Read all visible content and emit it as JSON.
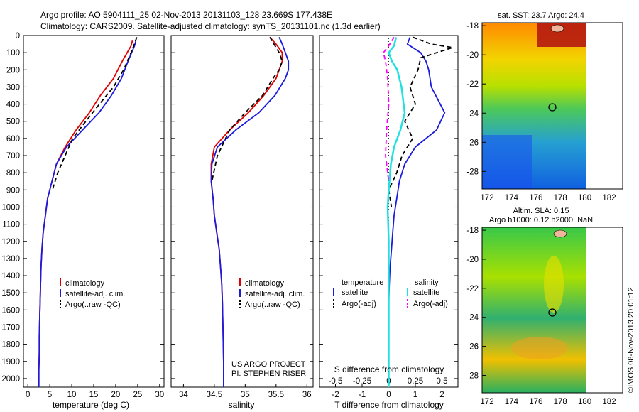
{
  "header": {
    "line1": "Argo profile: AO 5904111_25 02-Nov-2013 20131103_128 23.669S 177.438E",
    "line2": "Climatology: CARS2009. Satellite-adjusted climatology: synTS_20131101.nc (1.3d earlier)"
  },
  "colors": {
    "climatology": "#e00000",
    "satellite": "#1a1ae0",
    "argo": "#000000",
    "sal_satellite": "#20e0e0",
    "sal_argo": "#ff00ff"
  },
  "depth_axis": {
    "min": 0,
    "max": 2050,
    "ticks": [
      "0",
      "100",
      "200",
      "300",
      "400",
      "500",
      "600",
      "700",
      "800",
      "900",
      "1000",
      "1100",
      "1200",
      "1300",
      "1400",
      "1500",
      "1600",
      "1700",
      "1800",
      "1900",
      "2000"
    ]
  },
  "temperature_panel": {
    "xlabel": "temperature (deg C)",
    "xticks": [
      "0",
      "5",
      "10",
      "15",
      "20",
      "25",
      "30"
    ],
    "legend": [
      "climatology",
      "satellite-adj. clim.",
      "Argo(..raw -QC)"
    ]
  },
  "salinity_panel": {
    "xlabel": "salinity",
    "xticks": [
      "34",
      "34.5",
      "35",
      "35.5",
      "36"
    ],
    "legend": [
      "climatology",
      "satellite-adj. clim.",
      "Argo(..raw -QC)"
    ],
    "credit1": "US ARGO PROJECT",
    "credit2": "PI: STEPHEN RISER"
  },
  "diff_panel": {
    "top_ticks": [
      "-0.5",
      "-0.25",
      "0",
      "0.25",
      "0.5"
    ],
    "bottom_ticks": [
      "-2",
      "-1",
      "0",
      "1",
      "2"
    ],
    "top_label": "S difference from climatology",
    "bottom_label": "T difference from climatology",
    "legend_temp_title": "temperature",
    "legend_sal_title": "salinity",
    "legend_temp": [
      "satellite",
      "Argo(-adj)"
    ],
    "legend_sal": [
      "satellite",
      "Argo(-adj)"
    ]
  },
  "map_sst": {
    "title": "sat. SST: 23.7 Argo: 24.4",
    "yticks": [
      "-18",
      "-20",
      "-22",
      "-24",
      "-26",
      "-28"
    ],
    "xticks": [
      "172",
      "174",
      "176",
      "178",
      "180",
      "182"
    ]
  },
  "map_sla": {
    "title1": "Altim. SLA: 0.15",
    "title2": "Argo h1000: 0.12 h2000: NaN",
    "yticks": [
      "-18",
      "-20",
      "-22",
      "-24",
      "-26",
      "-28"
    ],
    "xticks": [
      "172",
      "174",
      "176",
      "178",
      "180",
      "182"
    ]
  },
  "footer": {
    "stamp": "©IMOS 08-Nov-2013 20:01:12"
  },
  "chart_data": [
    {
      "type": "line",
      "title": "",
      "xlabel": "temperature (deg C)",
      "ylabel": "",
      "xlim": [
        -1,
        31
      ],
      "ylim": [
        2050,
        0
      ],
      "series": [
        {
          "name": "climatology",
          "x": [
            23.8,
            23.5,
            21.5,
            19.5,
            16.5,
            14.0,
            11.0,
            8.5,
            6.5,
            5.5,
            4.5,
            4.0,
            3.5,
            3.2,
            3.0,
            2.9,
            2.8,
            2.7,
            2.6,
            2.6,
            2.5,
            2.5
          ],
          "y": [
            30,
            60,
            150,
            250,
            350,
            450,
            550,
            650,
            750,
            850,
            950,
            1050,
            1150,
            1250,
            1350,
            1450,
            1550,
            1650,
            1750,
            1850,
            1950,
            2050
          ]
        },
        {
          "name": "satellite-adj. clim.",
          "x": [
            24.6,
            24.3,
            22.8,
            21.3,
            19.0,
            16.2,
            12.5,
            8.8,
            6.5,
            5.5,
            4.5,
            4.0,
            3.5,
            3.2,
            3.0,
            2.9,
            2.8,
            2.7,
            2.6,
            2.6,
            2.5,
            2.5
          ],
          "y": [
            30,
            60,
            150,
            250,
            350,
            450,
            550,
            650,
            750,
            850,
            950,
            1050,
            1150,
            1250,
            1350,
            1450,
            1550,
            1650,
            1750,
            1850,
            1950,
            2050
          ]
        },
        {
          "name": "Argo(..raw -QC)",
          "x": [
            24.8,
            24.4,
            23.5,
            21.8,
            19.5,
            16.3,
            13.2,
            10.2,
            8.5,
            6.8,
            5.6
          ],
          "y": [
            10,
            40,
            100,
            200,
            300,
            400,
            500,
            600,
            700,
            800,
            900
          ]
        }
      ]
    },
    {
      "type": "line",
      "title": "",
      "xlabel": "salinity",
      "ylabel": "",
      "xlim": [
        33.8,
        36.1
      ],
      "ylim": [
        2050,
        0
      ],
      "series": [
        {
          "name": "climatology",
          "x": [
            35.4,
            35.5,
            35.6,
            35.6,
            35.55,
            35.5,
            35.3,
            35.05,
            34.75,
            34.5,
            34.45,
            34.45,
            34.48,
            34.5,
            34.54,
            34.58,
            34.6,
            34.62,
            34.63,
            34.64,
            34.65,
            34.65
          ],
          "y": [
            10,
            50,
            100,
            150,
            200,
            250,
            350,
            450,
            550,
            650,
            750,
            850,
            950,
            1050,
            1150,
            1250,
            1350,
            1450,
            1550,
            1700,
            1900,
            2050
          ]
        },
        {
          "name": "satellite-adj. clim.",
          "x": [
            35.55,
            35.6,
            35.65,
            35.7,
            35.7,
            35.65,
            35.48,
            35.22,
            34.85,
            34.55,
            34.46,
            34.45,
            34.48,
            34.5,
            34.54,
            34.58,
            34.6,
            34.62,
            34.63,
            34.64,
            34.65,
            34.65
          ],
          "y": [
            10,
            50,
            100,
            150,
            200,
            250,
            350,
            450,
            550,
            650,
            750,
            850,
            950,
            1050,
            1150,
            1250,
            1350,
            1450,
            1550,
            1700,
            1900,
            2050
          ]
        },
        {
          "name": "Argo(..raw -QC)",
          "x": [
            35.4,
            35.45,
            35.55,
            35.6,
            35.55,
            35.45,
            35.28,
            35.0,
            34.75,
            34.55,
            34.46
          ],
          "y": [
            10,
            40,
            100,
            150,
            200,
            250,
            350,
            450,
            550,
            700,
            850
          ]
        }
      ]
    },
    {
      "type": "line",
      "title": "",
      "xlabel": "T difference from climatology",
      "x2label": "S difference from climatology",
      "xlim": [
        -2.6,
        2.6
      ],
      "x2lim": [
        -0.65,
        0.65
      ],
      "ylim": [
        2050,
        0
      ],
      "series": [
        {
          "name": "temperature satellite",
          "x": [
            0.8,
            0.7,
            1.2,
            1.4,
            1.5,
            1.6,
            2.1,
            1.8,
            1.0,
            0.6,
            0.4,
            0.3,
            0.2,
            0.15,
            0.1,
            0.05,
            0.02,
            0.0,
            0.0,
            0.0,
            0.0,
            0.0
          ],
          "y": [
            10,
            50,
            100,
            150,
            200,
            300,
            450,
            550,
            650,
            750,
            850,
            950,
            1050,
            1150,
            1250,
            1350,
            1450,
            1550,
            1650,
            1750,
            1900,
            2050
          ]
        },
        {
          "name": "temperature Argo(-adj)",
          "x": [
            0.9,
            1.6,
            2.4,
            1.2,
            1.1,
            0.8,
            1.0,
            0.6,
            0.9,
            0.5,
            0.3,
            0.0,
            0.1
          ],
          "y": [
            10,
            50,
            70,
            130,
            200,
            300,
            400,
            500,
            600,
            700,
            800,
            900,
            1000
          ]
        },
        {
          "name": "salinity satellite",
          "x": [
            0.07,
            0.05,
            0.0,
            0.03,
            0.08,
            0.12,
            0.15,
            0.11,
            0.05,
            0.02,
            0.0,
            -0.01,
            0.0,
            0.0,
            0.0
          ],
          "y": [
            10,
            60,
            100,
            150,
            200,
            300,
            450,
            550,
            650,
            750,
            900,
            1000,
            1200,
            1500,
            2050
          ]
        },
        {
          "name": "salinity Argo(-adj)",
          "x": [
            0.05,
            0.0,
            -0.05,
            -0.03,
            -0.01,
            0.0,
            -0.02,
            -0.03,
            0.0
          ],
          "y": [
            10,
            60,
            100,
            150,
            250,
            400,
            550,
            700,
            850
          ]
        }
      ]
    }
  ]
}
